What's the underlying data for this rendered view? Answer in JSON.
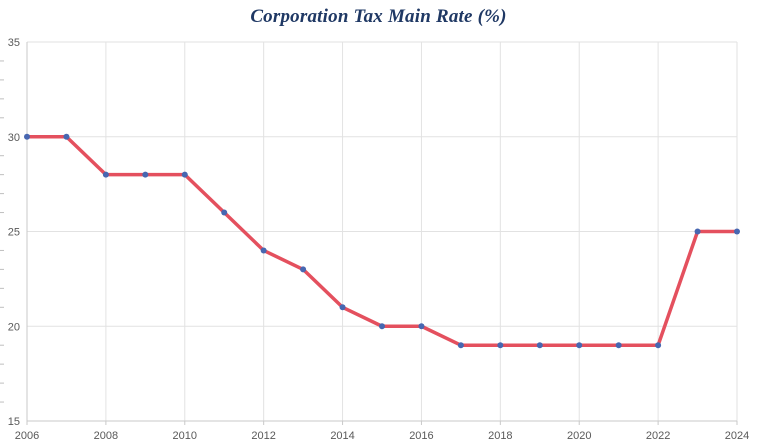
{
  "chart_data": {
    "type": "line",
    "title": "Corporation Tax Main Rate (%)",
    "x": [
      2006,
      2007,
      2008,
      2009,
      2010,
      2011,
      2012,
      2013,
      2014,
      2015,
      2016,
      2017,
      2018,
      2019,
      2020,
      2021,
      2022,
      2023,
      2024
    ],
    "values": [
      30,
      30,
      28,
      28,
      28,
      26,
      24,
      23,
      21,
      20,
      20,
      19,
      19,
      19,
      19,
      19,
      19,
      25,
      25
    ],
    "xlabel": "",
    "ylabel": "",
    "xlim": [
      2006,
      2024
    ],
    "ylim": [
      15,
      35
    ],
    "yticks_major": [
      15,
      20,
      25,
      30,
      35
    ],
    "y_minor_step": 1,
    "xticks_major": [
      2006,
      2008,
      2010,
      2012,
      2014,
      2016,
      2018,
      2020,
      2022,
      2024
    ],
    "grid": true,
    "legend_position": "none",
    "colors": {
      "line": "#e4505e",
      "marker": "#4767b1",
      "gridline": "#e2e2e2",
      "axis": "#c9c9c9",
      "tick": "#bfbfbf",
      "tick_label": "#595959",
      "title": "#1f3864",
      "background": "#ffffff"
    }
  }
}
